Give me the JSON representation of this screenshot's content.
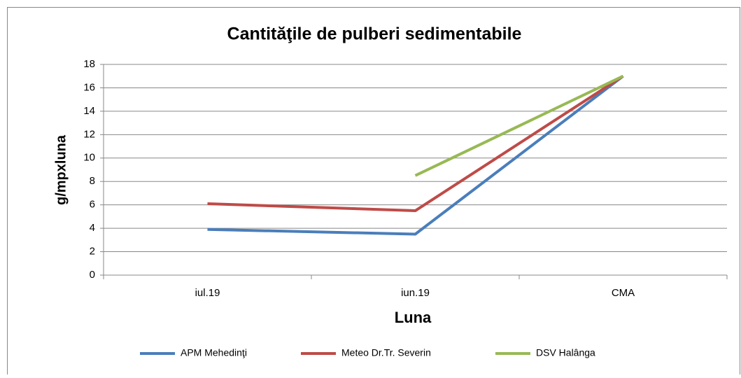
{
  "chart_data": {
    "type": "line",
    "title": "Cantităţile de  pulberi sedimentabile",
    "x_label": "Luna",
    "y_label": "g/mpxluna",
    "categories": [
      "iul.19",
      "iun.19",
      "CMA"
    ],
    "series": [
      {
        "name": "APM Mehedinţi",
        "color": "#4a7ebb",
        "values": [
          3.9,
          3.5,
          17
        ]
      },
      {
        "name": "Meteo Dr.Tr. Severin",
        "color": "#be4b48",
        "values": [
          6.1,
          5.5,
          17
        ]
      },
      {
        "name": "DSV Halânga",
        "color": "#98b954",
        "values": [
          null,
          8.5,
          17
        ]
      }
    ],
    "ylim": [
      0,
      18
    ],
    "yticks": [
      0,
      2,
      4,
      6,
      8,
      10,
      12,
      14,
      16,
      18
    ],
    "grid": true,
    "legend": "bottom"
  }
}
